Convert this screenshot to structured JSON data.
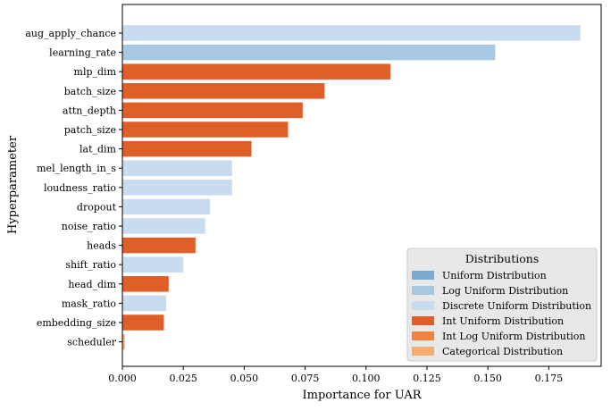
{
  "chart_data": {
    "type": "bar",
    "orientation": "horizontal",
    "xlabel": "Importance for UAR",
    "ylabel": "Hyperparameter",
    "xlim": [
      0,
      0.1965
    ],
    "xticks": [
      "0.000",
      "0.025",
      "0.050",
      "0.075",
      "0.100",
      "0.125",
      "0.150",
      "0.175"
    ],
    "xtick_values": [
      0,
      0.025,
      0.05,
      0.075,
      0.1,
      0.125,
      0.15,
      0.175
    ],
    "categories": [
      "aug_apply_chance",
      "learning_rate",
      "mlp_dim",
      "batch_size",
      "attn_depth",
      "patch_size",
      "lat_dim",
      "mel_length_in_s",
      "loudness_ratio",
      "dropout",
      "noise_ratio",
      "heads",
      "shift_ratio",
      "head_dim",
      "mask_ratio",
      "embedding_size",
      "scheduler"
    ],
    "values": [
      0.188,
      0.153,
      0.11,
      0.083,
      0.074,
      0.068,
      0.053,
      0.045,
      0.045,
      0.036,
      0.034,
      0.03,
      0.025,
      0.019,
      0.018,
      0.017,
      0.001
    ],
    "distributions": [
      "Discrete Uniform Distribution",
      "Log Uniform Distribution",
      "Int Uniform Distribution",
      "Int Uniform Distribution",
      "Int Uniform Distribution",
      "Int Uniform Distribution",
      "Int Uniform Distribution",
      "Discrete Uniform Distribution",
      "Discrete Uniform Distribution",
      "Discrete Uniform Distribution",
      "Discrete Uniform Distribution",
      "Int Uniform Distribution",
      "Discrete Uniform Distribution",
      "Int Uniform Distribution",
      "Discrete Uniform Distribution",
      "Int Uniform Distribution",
      "Categorical Distribution"
    ],
    "legend": {
      "title": "Distributions",
      "position": "lower-right",
      "entries": [
        {
          "label": "Uniform Distribution",
          "color": "#7aaad2"
        },
        {
          "label": "Log Uniform Distribution",
          "color": "#a6c8e2"
        },
        {
          "label": "Discrete Uniform Distribution",
          "color": "#c9dcef"
        },
        {
          "label": "Int Uniform Distribution",
          "color": "#de5f27"
        },
        {
          "label": "Int Log Uniform Distribution",
          "color": "#f0843e"
        },
        {
          "label": "Categorical Distribution",
          "color": "#f6ad72"
        }
      ]
    }
  }
}
